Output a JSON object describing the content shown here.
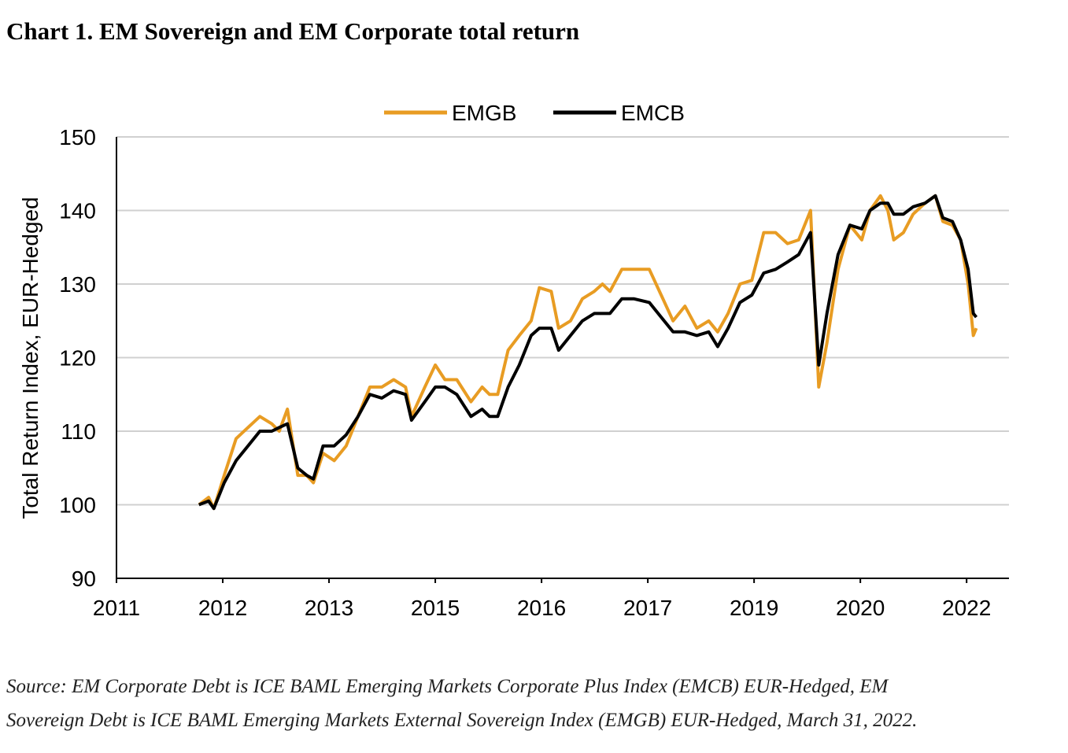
{
  "chart_data": {
    "type": "line",
    "title": "Chart 1. EM Sovereign and EM Corporate total return",
    "y_label": "Total Return Index, EUR-Hedged",
    "source": [
      "Source: EM Corporate Debt is ICE BAML Emerging Markets Corporate Plus Index (EMCB) EUR-Hedged, EM",
      "Sovereign Debt is ICE BAML Emerging Markets External Sovereign Index (EMGB) EUR-Hedged, March 31, 2022."
    ],
    "legend": "top",
    "grid": true,
    "x": [
      2011.79,
      2011.92,
      2011.99,
      2012.13,
      2012.29,
      2012.45,
      2012.61,
      2012.77,
      2012.87,
      2012.98,
      2013.12,
      2013.24,
      2013.33,
      2013.46,
      2013.61,
      2013.77,
      2013.93,
      2014.09,
      2014.25,
      2014.41,
      2014.57,
      2014.65,
      2014.83,
      2014.97,
      2015.1,
      2015.26,
      2015.45,
      2015.6,
      2015.7,
      2015.81,
      2015.95,
      2016.1,
      2016.26,
      2016.37,
      2016.53,
      2016.63,
      2016.79,
      2016.95,
      2017.11,
      2017.22,
      2017.32,
      2017.48,
      2017.64,
      2017.85,
      2018.01,
      2018.17,
      2018.33,
      2018.49,
      2018.65,
      2018.77,
      2018.91,
      2019.07,
      2019.23,
      2019.39,
      2019.55,
      2019.71,
      2019.86,
      2020.02,
      2020.13,
      2020.24,
      2020.39,
      2020.55,
      2020.71,
      2020.82,
      2020.96,
      2021.06,
      2021.14,
      2021.27,
      2021.4,
      2021.56,
      2021.7,
      2021.8,
      2021.93,
      2022.04,
      2022.14,
      2022.21,
      2022.25
    ],
    "series": [
      {
        "name": "EMGB",
        "color": "#e89c23",
        "values": [
          100,
          101,
          99.5,
          104,
          109,
          110.5,
          112,
          111,
          110,
          113,
          104,
          104,
          103,
          107,
          106,
          108,
          112,
          116,
          116,
          117,
          116,
          112,
          116,
          119,
          117,
          117,
          114,
          116,
          115,
          115,
          121,
          123,
          125,
          129.5,
          129,
          124,
          125,
          128,
          129,
          130,
          129,
          132,
          132,
          132,
          128.5,
          125,
          127,
          124,
          125,
          123.5,
          126,
          130,
          130.5,
          137,
          137,
          135.5,
          136,
          140,
          116,
          122,
          132,
          138,
          136,
          140,
          142,
          140,
          136,
          137,
          139.5,
          141,
          142,
          138.5,
          138,
          136,
          130,
          123,
          124
        ]
      },
      {
        "name": "EMCB",
        "color": "#000000",
        "values": [
          100,
          100.5,
          99.5,
          103,
          106,
          108,
          110,
          110,
          110.5,
          111,
          105,
          104,
          103.5,
          108,
          108,
          109.5,
          112,
          115,
          114.5,
          115.5,
          115,
          111.5,
          114,
          116,
          116,
          115,
          112,
          113,
          112,
          112,
          116,
          119,
          123,
          124,
          124,
          121,
          123,
          125,
          126,
          126,
          126,
          128,
          128,
          127.5,
          125.5,
          123.5,
          123.5,
          123,
          123.5,
          121.5,
          124,
          127.5,
          128.5,
          131.5,
          132,
          133,
          134,
          137,
          119,
          126,
          134,
          138,
          137.5,
          140,
          141,
          141,
          139.5,
          139.5,
          140.5,
          141,
          142,
          139,
          138.5,
          136,
          132,
          126,
          125.5
        ]
      }
    ],
    "xlim": [
      2010.68,
      2022.69
    ],
    "xticks": [
      {
        "value": 2010.68,
        "label": "2011"
      },
      {
        "value": 2012.11,
        "label": "2012"
      },
      {
        "value": 2013.54,
        "label": "2013"
      },
      {
        "value": 2014.97,
        "label": "2015"
      },
      {
        "value": 2016.4,
        "label": "2016"
      },
      {
        "value": 2017.83,
        "label": "2017"
      },
      {
        "value": 2019.26,
        "label": "2019"
      },
      {
        "value": 2020.69,
        "label": "2020"
      },
      {
        "value": 2022.12,
        "label": "2022"
      }
    ],
    "ylim": [
      90,
      150
    ],
    "yticks": [
      90,
      100,
      110,
      120,
      130,
      140,
      150
    ]
  }
}
